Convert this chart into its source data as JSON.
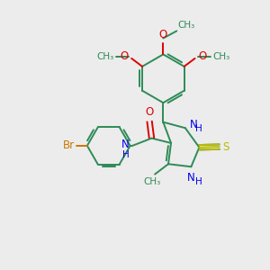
{
  "bg_color": "#ECECEC",
  "bond_color": "#2E8B57",
  "n_color": "#0000EE",
  "o_color": "#DD0000",
  "s_color": "#BBBB00",
  "br_color": "#CC7700",
  "line_width": 1.4,
  "font_size": 8.5,
  "fig_w": 3.0,
  "fig_h": 3.0,
  "dpi": 100,
  "xlim": [
    0,
    10
  ],
  "ylim": [
    0,
    10
  ]
}
